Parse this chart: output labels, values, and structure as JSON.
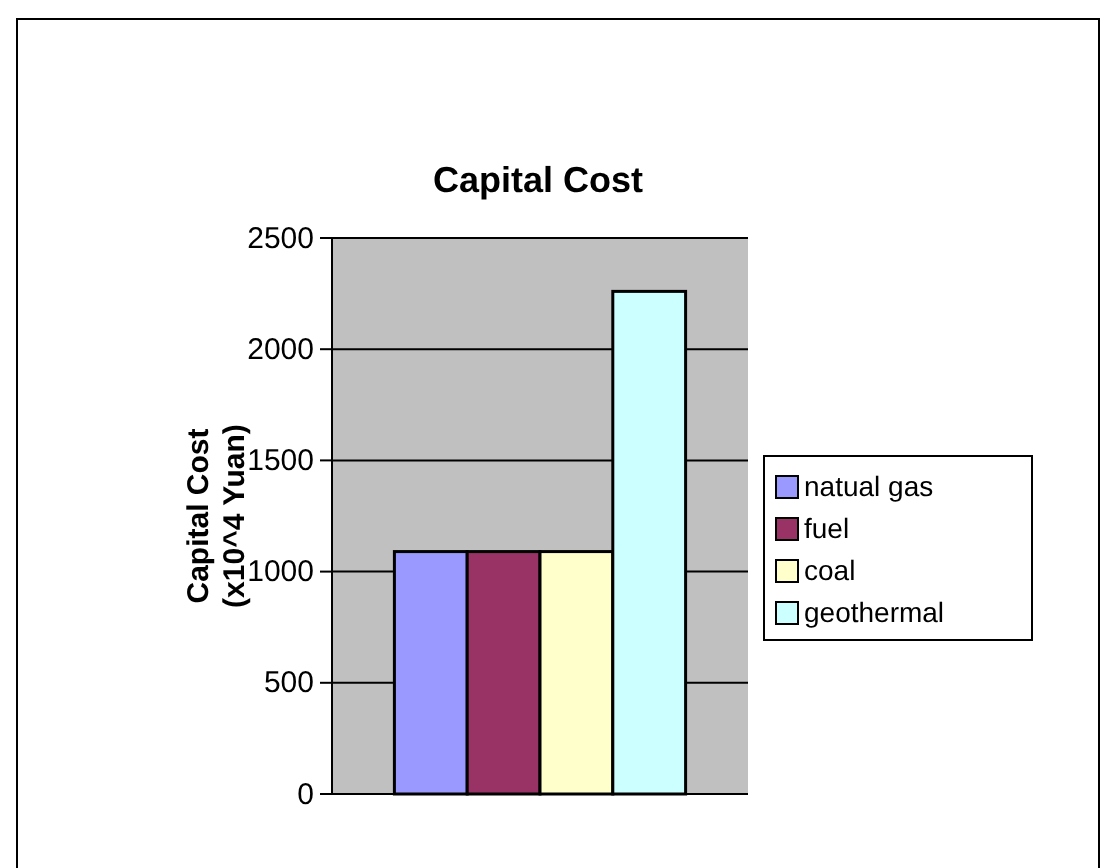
{
  "chart_data": {
    "type": "bar",
    "title": "Capital Cost",
    "ylabel": "Capital Cost\n(x10^4 Yuan)",
    "categories": [
      null
    ],
    "series": [
      {
        "name": "natual gas",
        "color": "#9999ff",
        "values": [
          1090
        ]
      },
      {
        "name": "fuel",
        "color": "#993366",
        "values": [
          1090
        ]
      },
      {
        "name": "coal",
        "color": "#ffffcc",
        "values": [
          1090
        ]
      },
      {
        "name": "geothermal",
        "color": "#ccffff",
        "values": [
          2260
        ]
      }
    ],
    "ylim": [
      0,
      2500
    ],
    "yticks": [
      0,
      500,
      1000,
      1500,
      2000,
      2500
    ],
    "grid": "y",
    "legend": "right"
  }
}
